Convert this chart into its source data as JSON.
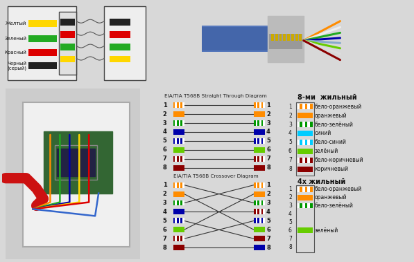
{
  "bg_color": "#d8d8d8",
  "straight_title": "EIA/TIA T568B Straight Through Diagram",
  "crossover_title": "EIA/TIA T568B Crossover Diagram",
  "legend8_title": "8-ми  жильный",
  "legend4_title": "4х жильный",
  "top_labels": [
    "Желтый",
    "Зеленый",
    "Красный",
    "Черный\n(серый)"
  ],
  "straight_wire_colors": [
    [
      "#FF8C00",
      "#ffffff"
    ],
    [
      "#FF8C00",
      "#FF8C00"
    ],
    [
      "#009900",
      "#ffffff"
    ],
    [
      "#0000AA",
      "#0000AA"
    ],
    [
      "#0000AA",
      "#ffffff"
    ],
    [
      "#66CC00",
      "#66CC00"
    ],
    [
      "#8B0000",
      "#ffffff"
    ],
    [
      "#8B0000",
      "#8B0000"
    ]
  ],
  "crossover_right_positions": [
    3,
    6,
    1,
    4,
    7,
    2,
    5,
    8
  ],
  "crossover_right_colors": [
    [
      "#009900",
      "#ffffff"
    ],
    [
      "#66CC00",
      "#66CC00"
    ],
    [
      "#FF8C00",
      "#ffffff"
    ],
    [
      "#8B0000",
      "#ffffff"
    ],
    [
      "#8B0000",
      "#8B0000"
    ],
    [
      "#FF8C00",
      "#FF8C00"
    ],
    [
      "#0000AA",
      "#ffffff"
    ],
    [
      "#0000AA",
      "#0000AA"
    ]
  ],
  "wire_colors_8": [
    {
      "num": 1,
      "c1": "#ffffff",
      "c2": "#FF8C00",
      "label": "бело-оранжевый"
    },
    {
      "num": 2,
      "c1": "#FF8C00",
      "c2": "#FF8C00",
      "label": "оранжевый"
    },
    {
      "num": 3,
      "c1": "#ffffff",
      "c2": "#009900",
      "label": "бело-зелёный"
    },
    {
      "num": 4,
      "c1": "#00CCFF",
      "c2": "#00CCFF",
      "label": "синий"
    },
    {
      "num": 5,
      "c1": "#ffffff",
      "c2": "#00CCFF",
      "label": "бело-синий"
    },
    {
      "num": 6,
      "c1": "#66CC00",
      "c2": "#66CC00",
      "label": "зелёный"
    },
    {
      "num": 7,
      "c1": "#ffffff",
      "c2": "#8B0000",
      "label": "бело-коричневый"
    },
    {
      "num": 8,
      "c1": "#8B0000",
      "c2": "#8B0000",
      "label": "коричневый"
    }
  ],
  "wire_colors_4": [
    {
      "num": 1,
      "c1": "#ffffff",
      "c2": "#FF8C00",
      "label": "бело-оранжевый"
    },
    {
      "num": 2,
      "c1": "#FF8C00",
      "c2": "#FF8C00",
      "label": "оранжевый"
    },
    {
      "num": 3,
      "c1": "#ffffff",
      "c2": "#009900",
      "label": "бело-зелёный"
    },
    {
      "num": 4,
      "c1": null,
      "c2": null,
      "label": ""
    },
    {
      "num": 5,
      "c1": null,
      "c2": null,
      "label": ""
    },
    {
      "num": 6,
      "c1": "#66CC00",
      "c2": "#66CC00",
      "label": "зелёный"
    },
    {
      "num": 7,
      "c1": null,
      "c2": null,
      "label": ""
    },
    {
      "num": 8,
      "c1": null,
      "c2": null,
      "label": ""
    }
  ]
}
